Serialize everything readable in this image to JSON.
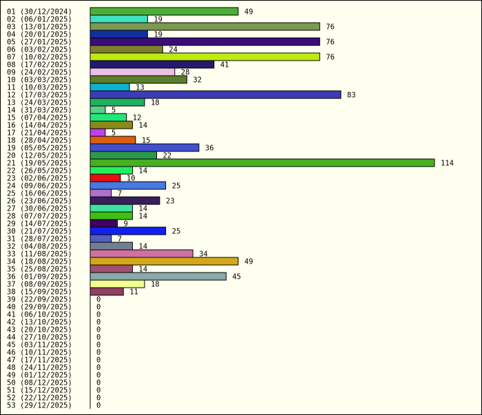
{
  "chart_data": {
    "type": "bar",
    "orientation": "horizontal",
    "title": "",
    "xlabel": "",
    "ylabel": "",
    "grid": false,
    "legend": "none",
    "background": "#fffff0",
    "categories": [
      "01 (30/12/2024)",
      "02 (06/01/2025)",
      "03 (13/01/2025)",
      "04 (20/01/2025)",
      "05 (27/01/2025)",
      "06 (03/02/2025)",
      "07 (10/02/2025)",
      "08 (17/02/2025)",
      "09 (24/02/2025)",
      "10 (03/03/2025)",
      "11 (10/03/2025)",
      "12 (17/03/2025)",
      "13 (24/03/2025)",
      "14 (31/03/2025)",
      "15 (07/04/2025)",
      "16 (14/04/2025)",
      "17 (21/04/2025)",
      "18 (28/04/2025)",
      "19 (05/05/2025)",
      "20 (12/05/2025)",
      "21 (19/05/2025)",
      "22 (26/05/2025)",
      "23 (02/06/2025)",
      "24 (09/06/2025)",
      "25 (16/06/2025)",
      "26 (23/06/2025)",
      "27 (30/06/2025)",
      "28 (07/07/2025)",
      "29 (14/07/2025)",
      "30 (21/07/2025)",
      "31 (28/07/2025)",
      "32 (04/08/2025)",
      "33 (11/08/2025)",
      "34 (18/08/2025)",
      "35 (25/08/2025)",
      "36 (01/09/2025)",
      "37 (08/09/2025)",
      "38 (15/09/2025)",
      "39 (22/09/2025)",
      "40 (29/09/2025)",
      "41 (06/10/2025)",
      "42 (13/10/2025)",
      "43 (20/10/2025)",
      "44 (27/10/2025)",
      "45 (03/11/2025)",
      "46 (10/11/2025)",
      "47 (17/11/2025)",
      "48 (24/11/2025)",
      "49 (01/12/2025)",
      "50 (08/12/2025)",
      "51 (15/12/2025)",
      "52 (22/12/2025)",
      "53 (29/12/2025)"
    ],
    "values": [
      49,
      19,
      76,
      19,
      76,
      24,
      76,
      41,
      28,
      32,
      13,
      83,
      18,
      5,
      12,
      14,
      5,
      15,
      36,
      22,
      114,
      14,
      10,
      25,
      7,
      23,
      14,
      14,
      9,
      25,
      7,
      14,
      34,
      49,
      14,
      45,
      18,
      11,
      0,
      0,
      0,
      0,
      0,
      0,
      0,
      0,
      0,
      0,
      0,
      0,
      0,
      0,
      0
    ],
    "colors": [
      "#4caf35",
      "#40e0c0",
      "#7a9a50",
      "#1030a0",
      "#3a0e78",
      "#7f7f2e",
      "#bfea10",
      "#241870",
      "#eabfe6",
      "#5a7f2c",
      "#10b0d0",
      "#3c3cb8",
      "#20b060",
      "#5acf8a",
      "#20e878",
      "#8a8a18",
      "#c040f0",
      "#da6010",
      "#4050d0",
      "#2a9a4a",
      "#48b020",
      "#20f060",
      "#e81010",
      "#4878e0",
      "#b070d0",
      "#3a1e5a",
      "#40e0a0",
      "#40c010",
      "#400060",
      "#1020f0",
      "#5060c0",
      "#708090",
      "#d070a0",
      "#d4a818",
      "#a05070",
      "#88aaa8",
      "#f0ff90",
      "#904060",
      "#f0f0f0",
      "#f0f0f0",
      "#f0f0f0",
      "#f0f0f0",
      "#f0f0f0",
      "#f0f0f0",
      "#f0f0f0",
      "#f0f0f0",
      "#f0f0f0",
      "#f0f0f0",
      "#f0f0f0",
      "#f0f0f0",
      "#f0f0f0",
      "#f0f0f0",
      "#f0f0f0"
    ],
    "xlim": [
      0,
      114
    ]
  }
}
